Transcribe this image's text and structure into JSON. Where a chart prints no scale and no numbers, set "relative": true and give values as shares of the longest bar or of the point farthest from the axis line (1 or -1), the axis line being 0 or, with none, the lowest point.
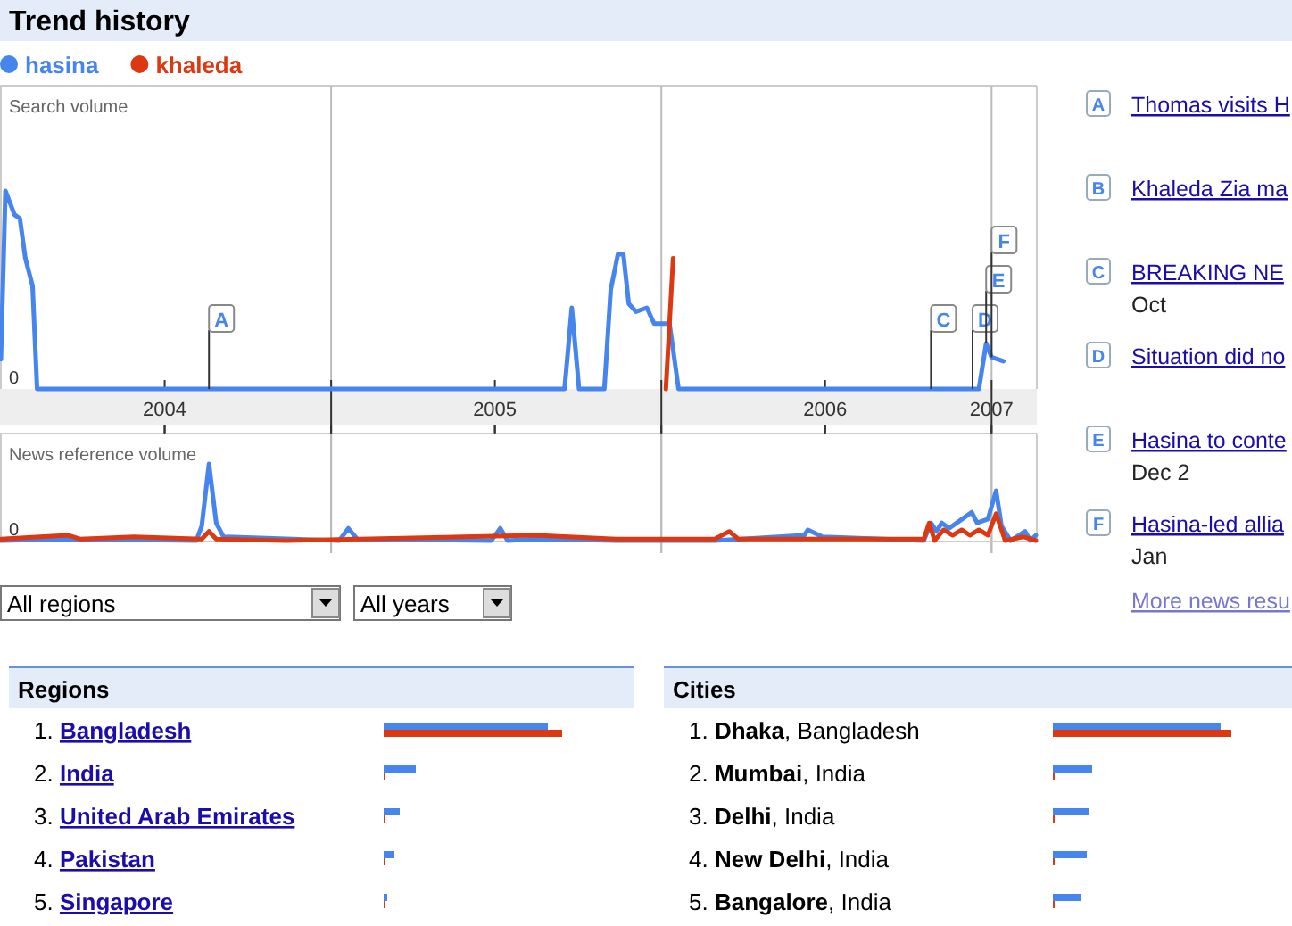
{
  "chart_data": [
    {
      "type": "line",
      "title": "Trend history",
      "ylabel": "Search volume",
      "relative": true,
      "legend": "top left",
      "grid": "x",
      "xlim": [
        "2004-01-01",
        "2007-02-20"
      ],
      "xticks": [
        {
          "value": "2004-07-01",
          "label": "2004"
        },
        {
          "value": "2005-01-01",
          "label": null
        },
        {
          "value": "2005-07-01",
          "label": "2005"
        },
        {
          "value": "2006-01-01",
          "label": null
        },
        {
          "value": "2006-07-01",
          "label": "2006"
        },
        {
          "value": "2007-01-01",
          "label": "2007"
        }
      ],
      "series": [
        {
          "name": "hasina",
          "color": "#4684ee",
          "x": [
            "2004-01-02",
            "2004-01-07",
            "2004-01-17",
            "2004-01-23",
            "2004-01-29",
            "2004-02-06",
            "2004-02-11",
            "2004-08-19",
            "2005-09-16",
            "2005-09-24",
            "2005-10-02",
            "2005-10-30",
            "2005-11-06",
            "2005-11-14",
            "2005-11-20",
            "2005-11-26",
            "2005-12-04",
            "2005-12-16",
            "2005-12-24",
            "2006-01-10",
            "2006-01-20",
            "2006-10-26",
            "2006-12-11",
            "2006-12-18",
            "2006-12-26",
            "2007-01-01",
            "2007-01-14"
          ],
          "values": [
            0.15,
            1,
            0.88,
            0.86,
            0.66,
            0.52,
            0,
            0,
            0,
            0.41,
            0,
            0,
            0.5,
            0.68,
            0.68,
            0.43,
            0.39,
            0.41,
            0.33,
            0.33,
            0,
            0,
            0,
            0,
            0.23,
            0.16,
            0.14
          ]
        },
        {
          "name": "khaleda",
          "color": "#dc3912",
          "x": [
            "2006-01-06",
            "2006-01-14"
          ],
          "values": [
            0,
            0.66
          ]
        }
      ],
      "annotations": [
        {
          "text": "A",
          "x": "2004-08-19",
          "y": 0
        },
        {
          "text": "C",
          "x": "2006-10-26",
          "y": 0
        },
        {
          "text": "D",
          "x": "2006-12-11",
          "y": 0
        },
        {
          "text": "E",
          "x": "2006-12-26",
          "y": 0.23
        },
        {
          "text": "F",
          "x": "2007-01-01",
          "y": 0.16
        },
        "0"
      ]
    },
    {
      "type": "line",
      "ylabel": "News reference volume",
      "relative": true,
      "grid": "x",
      "tick_labels": false,
      "xlim": [
        "2004-01-01",
        "2007-02-20"
      ],
      "xticks": [
        {
          "value": "2004-07-01",
          "label": null
        },
        {
          "value": "2005-01-01",
          "label": null
        },
        {
          "value": "2005-07-01",
          "label": null
        },
        {
          "value": "2006-01-01",
          "label": null
        },
        {
          "value": "2006-07-01",
          "label": null
        },
        {
          "value": "2007-01-01",
          "label": null
        }
      ],
      "series": [
        {
          "color": "#4684ee",
          "x": [
            "2004-01-02",
            "2004-03-20",
            "2004-08-05",
            "2004-08-11",
            "2004-08-19",
            "2004-08-27",
            "2004-09-04",
            "2005-01-10",
            "2005-01-20",
            "2005-01-30",
            "2005-06-27",
            "2005-07-07",
            "2005-07-15",
            "2005-08-15",
            "2005-11-12",
            "2006-03-01",
            "2006-06-08",
            "2006-06-12",
            "2006-06-28",
            "2006-10-18",
            "2006-10-26",
            "2006-11-01",
            "2006-11-07",
            "2006-11-15",
            "2006-11-27",
            "2006-12-10",
            "2006-12-16",
            "2006-12-28",
            "2007-01-06",
            "2007-01-12",
            "2007-01-22",
            "2007-02-07",
            "2007-02-13",
            "2007-02-19"
          ],
          "values": [
            0,
            0.02,
            0,
            0.19,
            1,
            0.23,
            0.05,
            0,
            0.16,
            0.02,
            0,
            0.16,
            0,
            0.02,
            0,
            0,
            0.07,
            0.14,
            0.05,
            0,
            0.23,
            0.12,
            0.23,
            0.16,
            0.26,
            0.37,
            0.23,
            0.28,
            0.65,
            0.19,
            0,
            0.12,
            0,
            0.07
          ]
        },
        {
          "color": "#dc3912",
          "x": [
            "2004-01-02",
            "2004-03-16",
            "2004-03-30",
            "2004-05-28",
            "2004-08-11",
            "2004-08-19",
            "2004-08-27",
            "2004-11-12",
            "2005-08-15",
            "2005-11-12",
            "2006-03-01",
            "2006-03-17",
            "2006-03-27",
            "2006-10-18",
            "2006-10-24",
            "2006-10-30",
            "2006-11-09",
            "2006-11-19",
            "2006-11-29",
            "2006-12-08",
            "2006-12-18",
            "2006-12-28",
            "2007-01-06",
            "2007-01-16",
            "2007-02-05",
            "2007-02-19"
          ],
          "values": [
            0.02,
            0.07,
            0.02,
            0.05,
            0.02,
            0.12,
            0.02,
            0,
            0.07,
            0.02,
            0.02,
            0.12,
            0.02,
            0.02,
            0.23,
            0,
            0.14,
            0.07,
            0.14,
            0.07,
            0.14,
            0.07,
            0.35,
            0,
            0.05,
            0
          ]
        }
      ],
      "annotations": [
        "0"
      ]
    },
    {
      "type": "bar",
      "orientation": "horizontal",
      "title": "Regions",
      "relative": true,
      "categories": [
        "1. Bangladesh",
        "2. India",
        "3. United Arab Emirates",
        "4. Pakistan",
        "5. Singapore"
      ],
      "series": [
        {
          "color": "#4684ee",
          "values": [
            0.92,
            0.18,
            0.09,
            0.06,
            0.02
          ]
        },
        {
          "color": "#dc3912",
          "values": [
            1,
            0.01,
            0.01,
            0.01,
            0.01
          ]
        }
      ]
    },
    {
      "type": "bar",
      "orientation": "horizontal",
      "title": "Cities",
      "relative": true,
      "categories": [
        "1. Dhaka, Bangladesh",
        "2. Mumbai, India",
        "3. Delhi, India",
        "4. New Delhi, India",
        "5. Bangalore, India"
      ],
      "series": [
        {
          "color": "#4684ee",
          "values": [
            0.94,
            0.22,
            0.2,
            0.19,
            0.16
          ]
        },
        {
          "color": "#dc3912",
          "values": [
            1,
            0.01,
            0.01,
            0.01,
            0.01
          ]
        }
      ]
    },
    {
      "type": "other",
      "categories": [
        "A",
        "B",
        "C",
        "D",
        "E",
        "F"
      ],
      "annotations": [
        "Thomas visits H",
        "Khaleda Zia ma",
        "BREAKING NE",
        "Situation did no",
        "Hasina to conte",
        "Hasina-led allia",
        null,
        null,
        "Oct",
        null,
        "Dec 2",
        "Jan",
        "More news resu"
      ]
    },
    {
      "type": "other",
      "annotations": [
        "All regions",
        "All years"
      ]
    }
  ]
}
